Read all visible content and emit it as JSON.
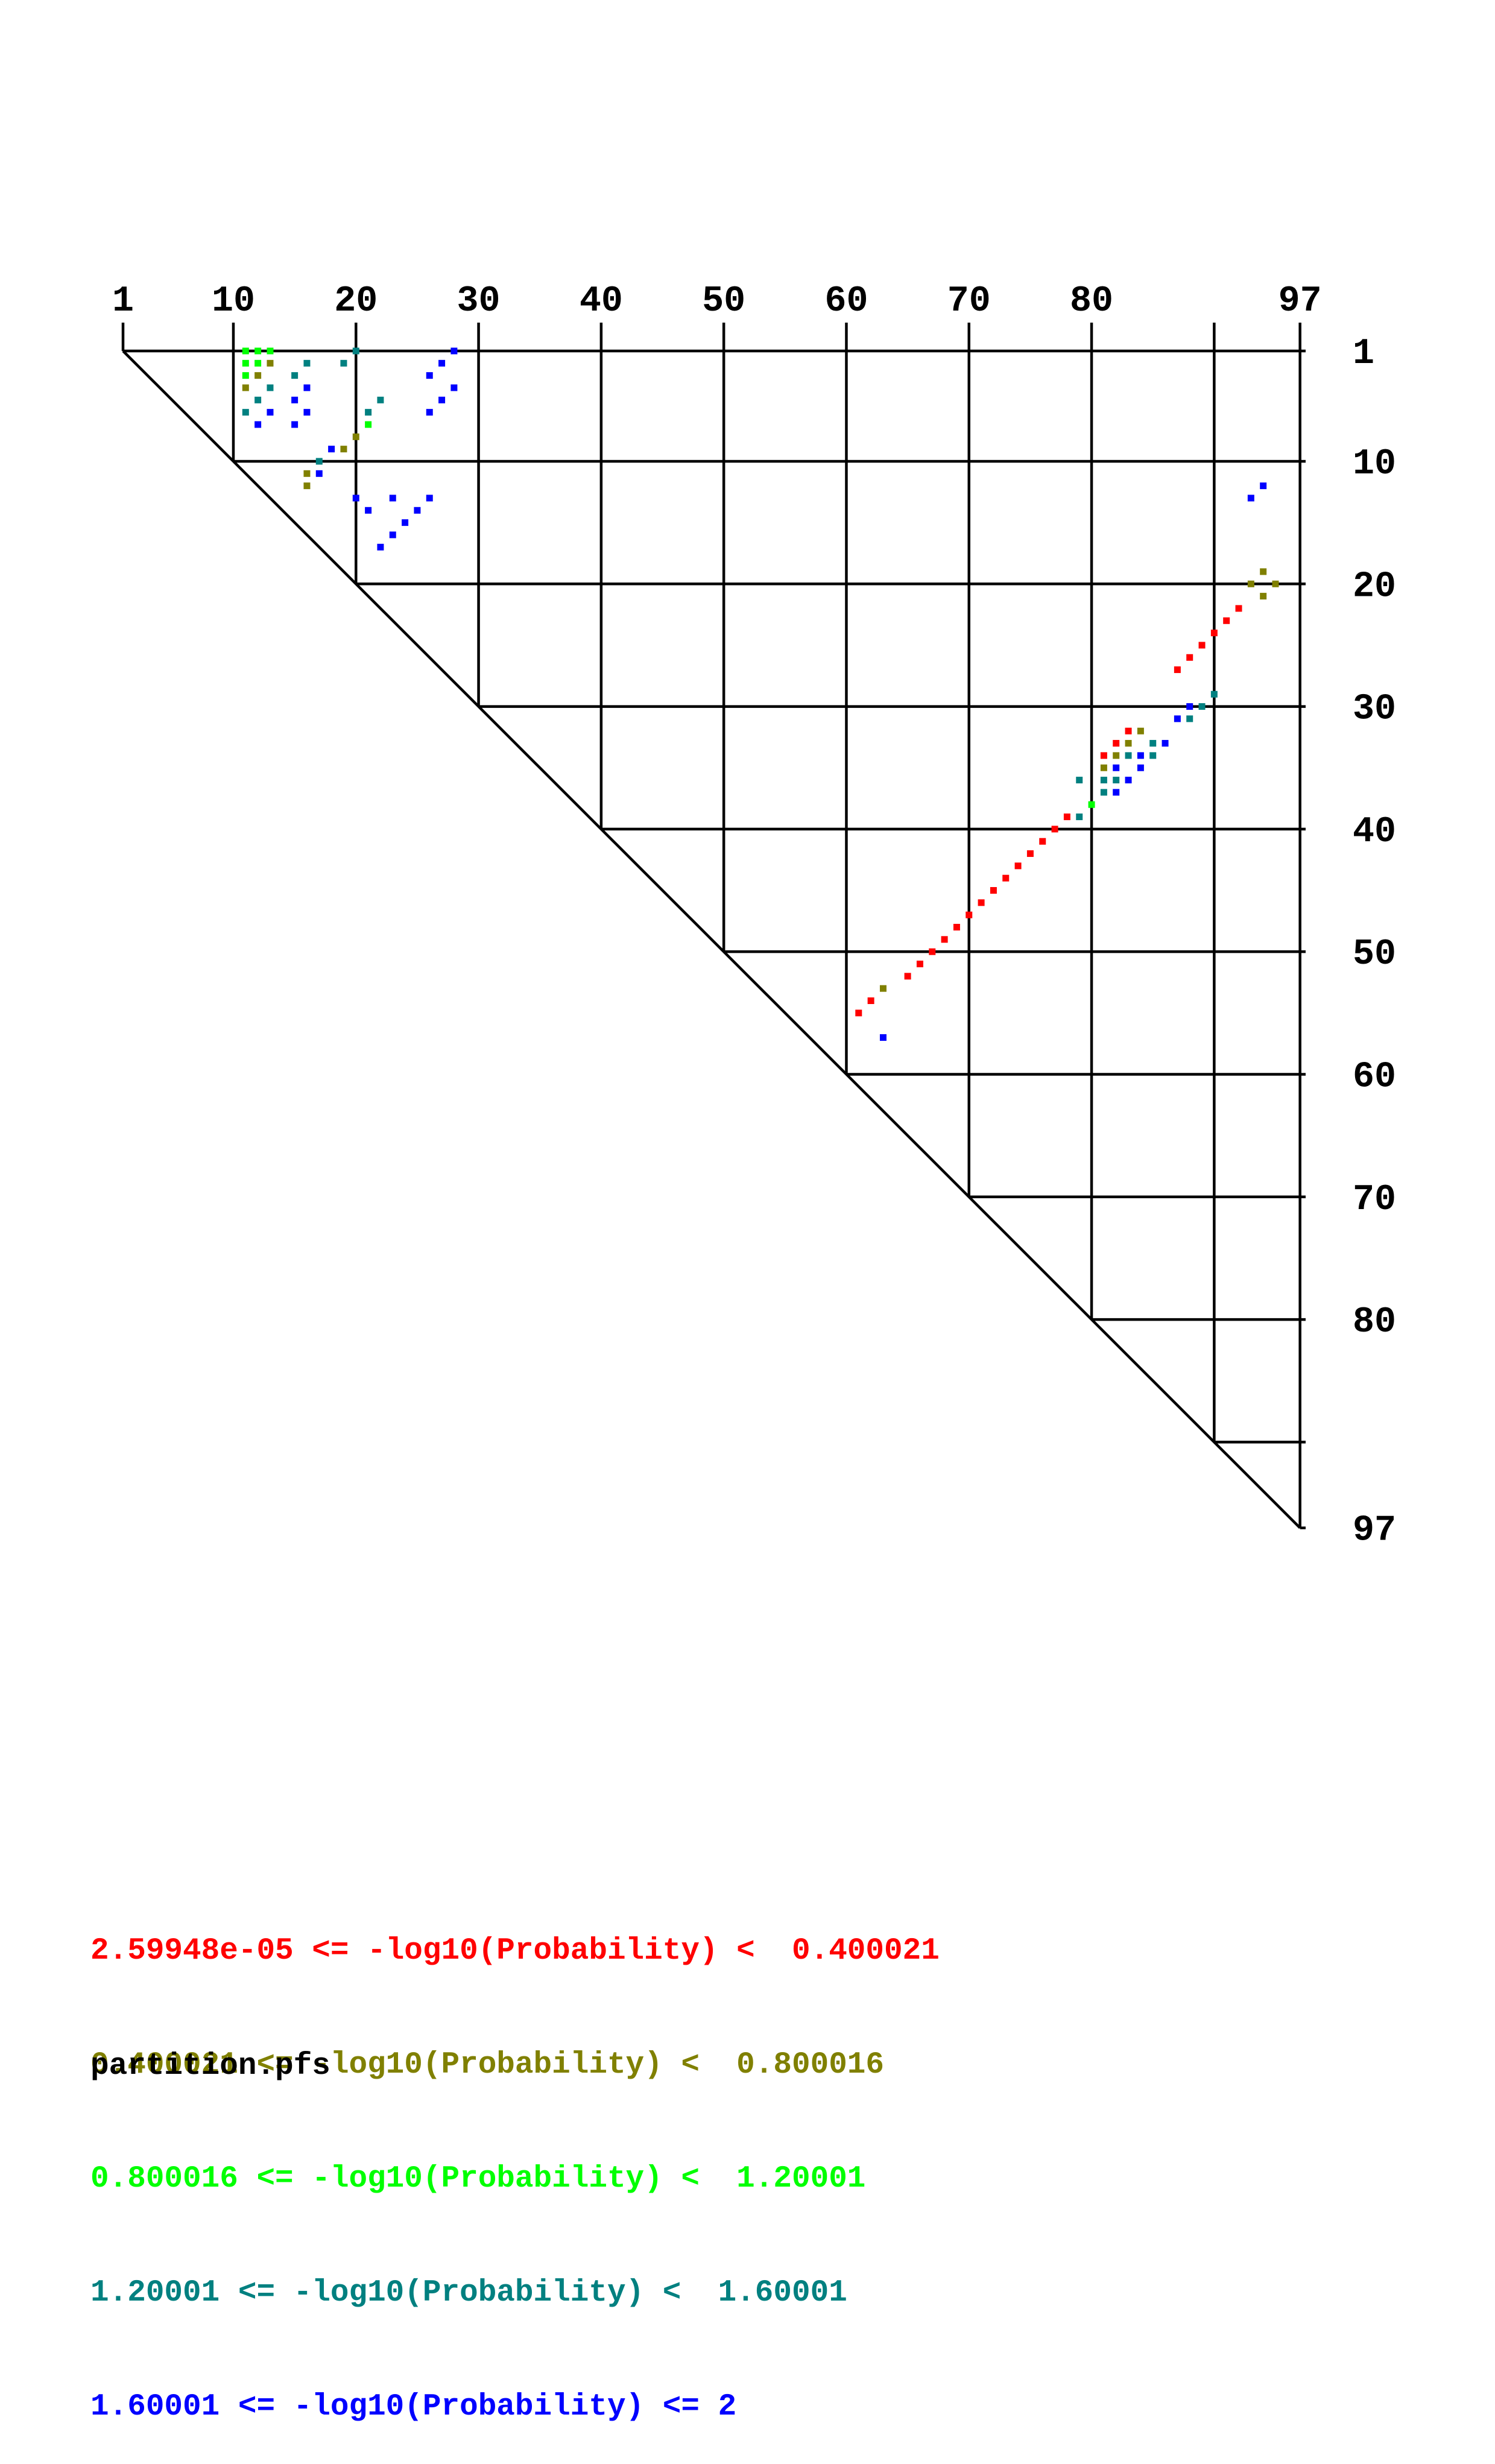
{
  "chart_data": {
    "type": "heatmap",
    "n": 97,
    "x_ticks": [
      "1",
      "10",
      "20",
      "30",
      "40",
      "50",
      "60",
      "70",
      "80",
      "97"
    ],
    "y_ticks": [
      "1",
      "10",
      "20",
      "30",
      "40",
      "50",
      "60",
      "70",
      "80",
      "97"
    ],
    "legend": [
      {
        "label": "2.59948e-05 <= -log10(Probability) <  0.400021",
        "color": "#ff0000"
      },
      {
        "label": "0.400021 <= -log10(Probability) <  0.800016",
        "color": "#808000"
      },
      {
        "label": "0.800016 <= -log10(Probability) <  1.20001",
        "color": "#00ff00"
      },
      {
        "label": "1.20001 <= -log10(Probability) <  1.60001",
        "color": "#008080"
      },
      {
        "label": "1.60001 <= -log10(Probability) <= 2",
        "color": "#0000ff"
      }
    ],
    "points": [
      [
        11,
        1,
        2
      ],
      [
        12,
        1,
        2
      ],
      [
        13,
        1,
        2
      ],
      [
        11,
        2,
        2
      ],
      [
        12,
        2,
        2
      ],
      [
        13,
        2,
        1
      ],
      [
        16,
        2,
        3
      ],
      [
        19,
        2,
        3
      ],
      [
        20,
        1,
        3
      ],
      [
        11,
        3,
        2
      ],
      [
        12,
        3,
        1
      ],
      [
        15,
        3,
        3
      ],
      [
        11,
        4,
        1
      ],
      [
        13,
        4,
        3
      ],
      [
        16,
        4,
        4
      ],
      [
        12,
        5,
        3
      ],
      [
        15,
        5,
        4
      ],
      [
        22,
        5,
        3
      ],
      [
        11,
        6,
        3
      ],
      [
        13,
        6,
        4
      ],
      [
        16,
        6,
        4
      ],
      [
        21,
        6,
        3
      ],
      [
        12,
        7,
        4
      ],
      [
        15,
        7,
        4
      ],
      [
        21,
        7,
        2
      ],
      [
        28,
        1,
        4
      ],
      [
        27,
        2,
        4
      ],
      [
        26,
        3,
        4
      ],
      [
        28,
        4,
        4
      ],
      [
        27,
        5,
        4
      ],
      [
        26,
        6,
        4
      ],
      [
        20,
        8,
        1
      ],
      [
        19,
        9,
        1
      ],
      [
        18,
        9,
        4
      ],
      [
        17,
        10,
        3
      ],
      [
        16,
        11,
        1
      ],
      [
        17,
        11,
        4
      ],
      [
        16,
        12,
        1
      ],
      [
        23,
        13,
        4
      ],
      [
        20,
        13,
        4
      ],
      [
        26,
        13,
        4
      ],
      [
        21,
        14,
        4
      ],
      [
        25,
        14,
        4
      ],
      [
        24,
        15,
        4
      ],
      [
        23,
        16,
        4
      ],
      [
        22,
        17,
        4
      ],
      [
        94,
        12,
        4
      ],
      [
        93,
        13,
        4
      ],
      [
        94,
        19,
        1
      ],
      [
        93,
        20,
        1
      ],
      [
        95,
        20,
        1
      ],
      [
        94,
        21,
        1
      ],
      [
        92,
        22,
        0
      ],
      [
        91,
        23,
        0
      ],
      [
        90,
        24,
        0
      ],
      [
        89,
        25,
        0
      ],
      [
        88,
        26,
        0
      ],
      [
        87,
        27,
        0
      ],
      [
        90,
        29,
        3
      ],
      [
        89,
        30,
        3
      ],
      [
        88,
        30,
        4
      ],
      [
        88,
        31,
        3
      ],
      [
        87,
        31,
        4
      ],
      [
        84,
        32,
        1
      ],
      [
        83,
        32,
        0
      ],
      [
        83,
        33,
        1
      ],
      [
        82,
        33,
        0
      ],
      [
        86,
        33,
        4
      ],
      [
        85,
        33,
        3
      ],
      [
        81,
        34,
        0
      ],
      [
        82,
        34,
        1
      ],
      [
        83,
        34,
        3
      ],
      [
        84,
        34,
        4
      ],
      [
        85,
        34,
        3
      ],
      [
        81,
        35,
        1
      ],
      [
        82,
        35,
        4
      ],
      [
        84,
        35,
        4
      ],
      [
        81,
        36,
        3
      ],
      [
        82,
        36,
        3
      ],
      [
        83,
        36,
        4
      ],
      [
        79,
        36,
        3
      ],
      [
        81,
        37,
        3
      ],
      [
        82,
        37,
        4
      ],
      [
        80,
        38,
        2
      ],
      [
        79,
        39,
        3
      ],
      [
        78,
        39,
        0
      ],
      [
        77,
        40,
        0
      ],
      [
        76,
        41,
        0
      ],
      [
        75,
        42,
        0
      ],
      [
        74,
        43,
        0
      ],
      [
        73,
        44,
        0
      ],
      [
        72,
        45,
        0
      ],
      [
        71,
        46,
        0
      ],
      [
        70,
        47,
        0
      ],
      [
        69,
        48,
        0
      ],
      [
        68,
        49,
        0
      ],
      [
        67,
        50,
        0
      ],
      [
        66,
        51,
        0
      ],
      [
        65,
        52,
        0
      ],
      [
        63,
        53,
        1
      ],
      [
        62,
        54,
        0
      ],
      [
        61,
        55,
        0
      ],
      [
        63,
        57,
        4
      ]
    ]
  },
  "footer": {
    "filename": "partition.pfs"
  }
}
